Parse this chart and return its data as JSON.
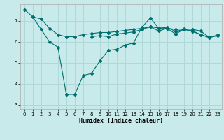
{
  "xlabel": "Humidex (Indice chaleur)",
  "ylabel": "",
  "bg_color": "#c8eaea",
  "grid_color": "#b0d8d8",
  "line_color": "#007070",
  "xlim": [
    -0.5,
    23.5
  ],
  "ylim": [
    2.8,
    7.8
  ],
  "xticks": [
    0,
    1,
    2,
    3,
    4,
    5,
    6,
    7,
    8,
    9,
    10,
    11,
    12,
    13,
    14,
    15,
    16,
    17,
    18,
    19,
    20,
    21,
    22,
    23
  ],
  "yticks": [
    3,
    4,
    5,
    6,
    7
  ],
  "lines": [
    [
      7.55,
      7.2,
      6.6,
      6.0,
      5.75,
      3.5,
      3.5,
      4.4,
      4.5,
      5.1,
      5.6,
      5.65,
      5.85,
      5.95,
      6.7,
      7.15,
      6.65,
      6.7,
      6.5,
      6.6,
      6.5,
      6.35,
      6.2,
      6.3
    ],
    [
      null,
      7.2,
      7.1,
      6.65,
      6.35,
      6.25,
      6.25,
      6.35,
      6.4,
      6.45,
      6.45,
      6.5,
      6.55,
      6.6,
      6.65,
      6.72,
      6.67,
      6.65,
      6.6,
      6.62,
      6.6,
      6.52,
      6.22,
      6.32
    ],
    [
      null,
      null,
      null,
      null,
      null,
      null,
      null,
      null,
      6.25,
      6.3,
      6.25,
      6.38,
      6.42,
      6.48,
      6.6,
      6.72,
      6.52,
      6.65,
      6.38,
      6.6,
      6.53,
      6.35,
      6.22,
      6.32
    ]
  ],
  "has_markers": [
    true,
    true,
    true
  ],
  "marker": "D",
  "marker_size": 2.0,
  "linewidth": 0.8
}
